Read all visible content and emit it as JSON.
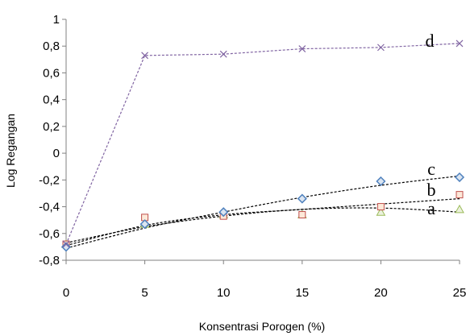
{
  "chart_data": {
    "type": "scatter",
    "xlabel": "Konsentrasi Porogen (%)",
    "ylabel": "Log Regangan",
    "xlim": [
      0,
      25
    ],
    "ylim": [
      -0.8,
      1
    ],
    "x_ticks": [
      "0",
      "5",
      "10",
      "15",
      "20",
      "25"
    ],
    "y_ticks": [
      "-0,8",
      "-0,6",
      "-0,4",
      "-0,2",
      "0",
      "0,2",
      "0,4",
      "0,6",
      "0,8",
      "1"
    ],
    "grid": false,
    "series": [
      {
        "label": "a",
        "marker": "triangle",
        "color": "#9bbb59",
        "line_style": "dashed",
        "line_color": "#000000",
        "x": [
          0,
          5,
          10,
          15,
          20,
          25
        ],
        "y": [
          -0.68,
          -0.53,
          -0.46,
          -0.46,
          -0.44,
          -0.42
        ],
        "trend": [
          -0.67,
          -0.55,
          -0.47,
          -0.42,
          -0.41,
          -0.44
        ]
      },
      {
        "label": "b",
        "marker": "square",
        "color": "#c0504d",
        "line_style": "dashed",
        "line_color": "#000000",
        "x": [
          0,
          5,
          10,
          15,
          20,
          25
        ],
        "y": [
          -0.68,
          -0.48,
          -0.47,
          -0.46,
          -0.4,
          -0.31
        ],
        "trend": [
          -0.69,
          -0.54,
          -0.46,
          -0.42,
          -0.38,
          -0.34
        ]
      },
      {
        "label": "c",
        "marker": "diamond",
        "color": "#4f81bd",
        "line_style": "dashed",
        "line_color": "#000000",
        "x": [
          0,
          5,
          10,
          15,
          20,
          25
        ],
        "y": [
          -0.7,
          -0.53,
          -0.44,
          -0.34,
          -0.21,
          -0.18
        ],
        "trend": [
          -0.71,
          -0.56,
          -0.44,
          -0.33,
          -0.24,
          -0.17
        ]
      },
      {
        "label": "d",
        "marker": "x",
        "color": "#8064a2",
        "line_style": "dashed",
        "line_color": "#8064a2",
        "x": [
          0,
          5,
          10,
          15,
          20,
          25
        ],
        "y": [
          -0.68,
          0.73,
          0.74,
          0.78,
          0.79,
          0.82
        ],
        "trend": [
          -0.68,
          0.73,
          0.74,
          0.78,
          0.79,
          0.82
        ]
      }
    ]
  }
}
